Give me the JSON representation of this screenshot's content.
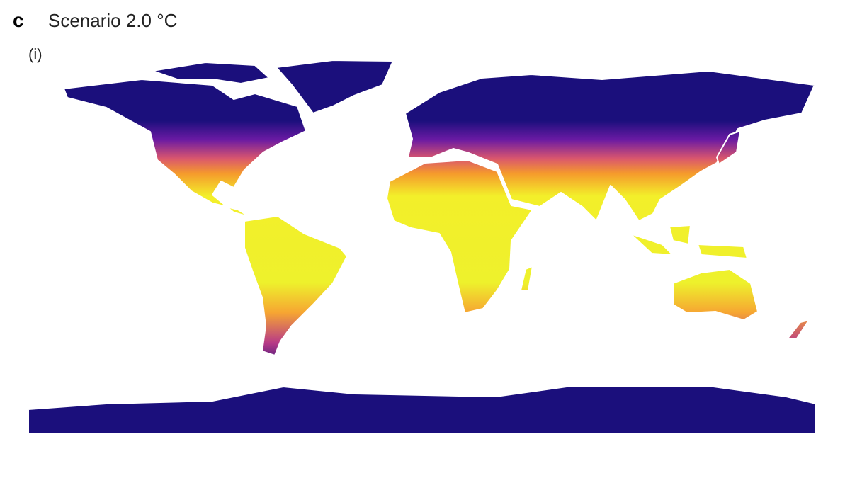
{
  "panel_label": "c",
  "title": "Scenario 2.0 °C",
  "subpanel_label": "(i)"
}
